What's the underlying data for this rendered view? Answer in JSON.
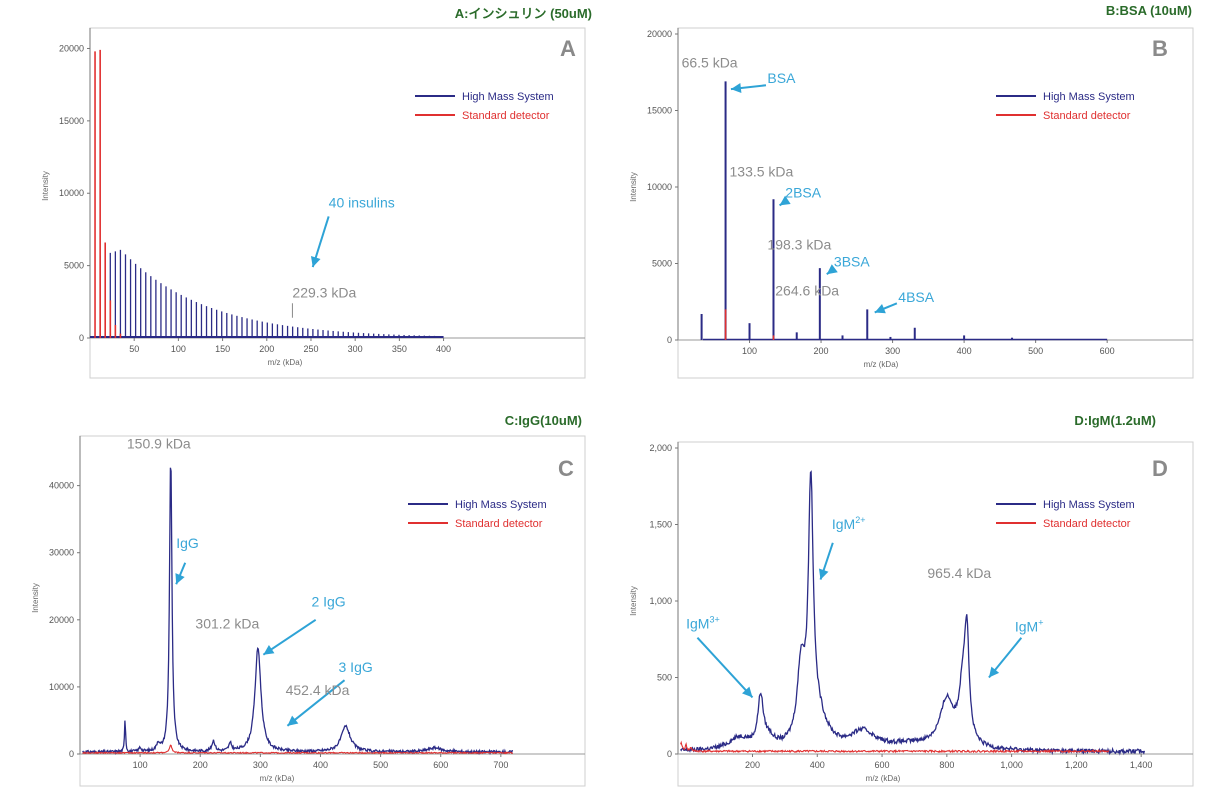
{
  "chart_data": [
    {
      "id": "A",
      "title": "A:インシュリン (50uM)",
      "panel_letter": "A",
      "type": "line",
      "xlabel": "m/z (kDa)",
      "ylabel": "Intensity",
      "xlim": [
        0,
        560
      ],
      "ylim": [
        0,
        21000
      ],
      "xticks": [
        "50",
        "100",
        "150",
        "200",
        "250",
        "300",
        "350",
        "400"
      ],
      "xtick_values": [
        50,
        100,
        150,
        200,
        250,
        300,
        350,
        400
      ],
      "yticks": [
        "0",
        "5000",
        "10000",
        "15000",
        "20000"
      ],
      "ytick_values": [
        0,
        5000,
        10000,
        15000,
        20000
      ],
      "series": [
        {
          "name": "High Mass System",
          "color": "#2b2b86",
          "kind": "peaks",
          "start": 11.5,
          "step": 5.73,
          "count": 68,
          "ymax": 6100,
          "peak_at": 35,
          "decay": 95
        },
        {
          "name": "Standard detector",
          "color": "#e03030",
          "kind": "peaks_list",
          "peaks": [
            [
              5.7,
              19800
            ],
            [
              11.5,
              19900
            ],
            [
              17.2,
              6600
            ],
            [
              23,
              2600
            ],
            [
              28.7,
              900
            ],
            [
              34.4,
              300
            ]
          ]
        }
      ],
      "legend": [
        "High Mass System",
        "Standard detector"
      ],
      "annotations": [
        {
          "text": "229.3 kDa",
          "class": "kda",
          "x": 229,
          "y": 2800
        },
        {
          "text": "40 insulins",
          "class": "ann",
          "x": 270,
          "y": 9000
        }
      ],
      "arrows": [
        [
          270,
          8400,
          252,
          4900
        ]
      ],
      "marker_line": [
        229,
        1400,
        229,
        2400
      ]
    },
    {
      "id": "B",
      "title": "B:BSA (10uM)",
      "panel_letter": "B",
      "type": "line",
      "xlabel": "m/z (kDa)",
      "ylabel": "Intensity",
      "xlim": [
        0,
        720
      ],
      "ylim": [
        0,
        20000
      ],
      "xticks": [
        "100",
        "200",
        "300",
        "400",
        "500",
        "600"
      ],
      "xtick_values": [
        100,
        200,
        300,
        400,
        500,
        600
      ],
      "yticks": [
        "0",
        "5000",
        "10000",
        "15000",
        "20000"
      ],
      "ytick_values": [
        0,
        5000,
        10000,
        15000,
        20000
      ],
      "series": [
        {
          "name": "High Mass System",
          "color": "#2b2b86",
          "kind": "peaks_list",
          "peaks": [
            [
              33,
              1700
            ],
            [
              66.5,
              16900
            ],
            [
              100,
              1100
            ],
            [
              133.5,
              9200
            ],
            [
              166,
              500
            ],
            [
              198.3,
              4700
            ],
            [
              230,
              300
            ],
            [
              264.6,
              2000
            ],
            [
              297,
              200
            ],
            [
              331,
              800
            ],
            [
              400,
              300
            ],
            [
              467,
              150
            ]
          ]
        },
        {
          "name": "Standard detector",
          "color": "#e03030",
          "kind": "peaks_list",
          "peaks": [
            [
              66.5,
              2000
            ],
            [
              133.5,
              300
            ]
          ]
        }
      ],
      "legend": [
        "High Mass System",
        "Standard detector"
      ],
      "annotations": [
        {
          "text": "66.5 kDa",
          "class": "kda",
          "x": 5,
          "y": 17800
        },
        {
          "text": "BSA",
          "class": "ann",
          "x": 125,
          "y": 16800
        },
        {
          "text": "133.5 kDa",
          "class": "kda",
          "x": 72,
          "y": 10700
        },
        {
          "text": "2BSA",
          "class": "ann",
          "x": 150,
          "y": 9300
        },
        {
          "text": "198.3 kDa",
          "class": "kda",
          "x": 125,
          "y": 5900
        },
        {
          "text": "3BSA",
          "class": "ann",
          "x": 218,
          "y": 4800
        },
        {
          "text": "264.6 kDa",
          "class": "kda",
          "x": 136,
          "y": 2900
        },
        {
          "text": "4BSA",
          "class": "ann",
          "x": 308,
          "y": 2500
        }
      ],
      "arrows": [
        [
          123,
          16650,
          74,
          16400
        ],
        [
          150,
          9050,
          142,
          8800
        ],
        [
          218,
          4650,
          208,
          4300
        ],
        [
          306,
          2400,
          275,
          1800
        ]
      ]
    },
    {
      "id": "C",
      "title": "C:IgG(10uM)",
      "panel_letter": "C",
      "type": "line",
      "xlabel": "m/z (kDa)",
      "ylabel": "Intensity",
      "xlim": [
        0,
        840
      ],
      "ylim": [
        0,
        46500
      ],
      "xticks": [
        "100",
        "200",
        "300",
        "400",
        "500",
        "600",
        "700"
      ],
      "xtick_values": [
        100,
        200,
        300,
        400,
        500,
        600,
        700
      ],
      "yticks": [
        "0",
        "10000",
        "20000",
        "30000",
        "40000"
      ],
      "ytick_values": [
        0,
        10000,
        20000,
        30000,
        40000
      ],
      "series": [
        {
          "name": "High Mass System",
          "color": "#2b2b86",
          "kind": "curve",
          "baseline": 300,
          "noise": 200,
          "xmax": 720,
          "peaks": [
            [
              75,
              5000,
              1.0
            ],
            [
              100,
              600,
              2.5
            ],
            [
              130,
              1100,
              3
            ],
            [
              150.9,
              44000,
              2.4
            ],
            [
              222,
              1600,
              3
            ],
            [
              250,
              1100,
              3
            ],
            [
              296,
              15500,
              6
            ],
            [
              442,
              3800,
              9
            ],
            [
              590,
              600,
              14
            ]
          ]
        },
        {
          "name": "Standard detector",
          "color": "#e03030",
          "kind": "curve",
          "baseline": 180,
          "noise": 80,
          "xmax": 720,
          "peaks": [
            [
              150.9,
              1100,
              2.5
            ]
          ]
        }
      ],
      "legend": [
        "High Mass System",
        "Standard detector"
      ],
      "annotations": [
        {
          "text": "150.9 kDa",
          "class": "kda",
          "x": 78,
          "y": 45500
        },
        {
          "text": "IgG",
          "class": "ann",
          "x": 160,
          "y": 30700
        },
        {
          "text": "301.2 kDa",
          "class": "kda",
          "x": 192,
          "y": 18700
        },
        {
          "text": "2 IgG",
          "class": "ann",
          "x": 385,
          "y": 22000
        },
        {
          "text": "452.4 kDa",
          "class": "kda",
          "x": 342,
          "y": 8800
        },
        {
          "text": "3 IgG",
          "class": "ann",
          "x": 430,
          "y": 12200
        }
      ],
      "arrows": [
        [
          175,
          28500,
          160,
          25300
        ],
        [
          392,
          20000,
          305,
          14800
        ],
        [
          440,
          11000,
          345,
          4200
        ]
      ]
    },
    {
      "id": "D",
      "title": "D:IgM(1.2uM)",
      "panel_letter": "D",
      "type": "line",
      "xlabel": "m/z (kDa)",
      "ylabel": "Intensity",
      "xlim": [
        -30,
        1560
      ],
      "ylim": [
        0,
        2000
      ],
      "xticks": [
        "200",
        "400",
        "600",
        "800",
        "1,000",
        "1,200",
        "1,400"
      ],
      "xtick_values": [
        200,
        400,
        600,
        800,
        1000,
        1200,
        1400
      ],
      "yticks": [
        "0",
        "500",
        "1,000",
        "1,500",
        "2,000"
      ],
      "ytick_values": [
        0,
        500,
        1000,
        1500,
        2000
      ],
      "series": [
        {
          "name": "High Mass System",
          "color": "#2b2b86",
          "kind": "curve",
          "baseline": 15,
          "noise": 14,
          "xmax": 1410,
          "peaks": [
            [
              160,
              80,
              40
            ],
            [
              225,
              320,
              10
            ],
            [
              250,
              60,
              20
            ],
            [
              350,
              480,
              14
            ],
            [
              380,
              1600,
              9
            ],
            [
              400,
              200,
              35
            ],
            [
              540,
              110,
              45
            ],
            [
              800,
              300,
              25
            ],
            [
              850,
              380,
              14
            ],
            [
              862,
              620,
              8
            ],
            [
              700,
              40,
              120
            ]
          ]
        },
        {
          "name": "Standard detector",
          "color": "#e03030",
          "kind": "curve",
          "baseline": 18,
          "noise": 6,
          "xmax": 1300,
          "peaks": [
            [
              -20,
              50,
              4
            ],
            [
              -5,
              40,
              3
            ],
            [
              10,
              25,
              3
            ]
          ]
        }
      ],
      "legend": [
        "High Mass System",
        "Standard detector"
      ],
      "annotations": [
        {
          "text": "965.4 kDa",
          "class": "kda",
          "x": 740,
          "y": 1150
        },
        {
          "text": "IgM",
          "sup": "2+",
          "class": "ann",
          "x": 445,
          "y": 1470
        },
        {
          "text": "IgM",
          "sup": "3+",
          "class": "ann",
          "x": -5,
          "y": 820
        },
        {
          "text": "IgM",
          "sup": "+",
          "class": "ann",
          "x": 1010,
          "y": 800
        }
      ],
      "arrows": [
        [
          448,
          1380,
          410,
          1140
        ],
        [
          30,
          760,
          200,
          370
        ],
        [
          1030,
          760,
          930,
          500
        ]
      ]
    }
  ]
}
